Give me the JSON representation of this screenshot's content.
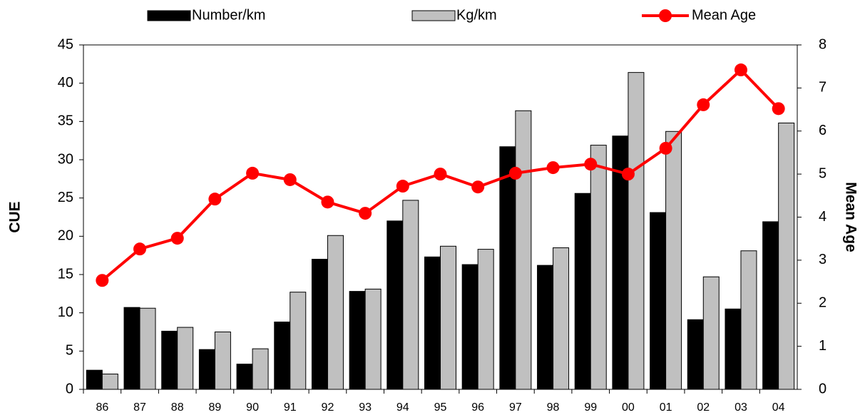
{
  "chart_data": {
    "type": "bar_line",
    "categories": [
      "86",
      "87",
      "88",
      "89",
      "90",
      "91",
      "92",
      "93",
      "94",
      "95",
      "96",
      "97",
      "98",
      "99",
      "00",
      "01",
      "02",
      "03",
      "04"
    ],
    "series": [
      {
        "name": "Number/km",
        "type": "bar",
        "color": "#000000",
        "values": [
          2.5,
          10.7,
          7.6,
          5.2,
          3.3,
          8.8,
          17.0,
          12.8,
          22.0,
          17.3,
          16.3,
          31.7,
          16.2,
          25.6,
          33.1,
          23.1,
          9.1,
          10.5,
          21.9
        ]
      },
      {
        "name": "Kg/km",
        "type": "bar",
        "color": "#c0c0c0",
        "values": [
          2.0,
          10.6,
          8.1,
          7.5,
          5.3,
          12.7,
          20.1,
          13.1,
          24.7,
          18.7,
          18.3,
          36.4,
          18.5,
          31.9,
          41.4,
          33.7,
          14.7,
          18.1,
          34.8
        ]
      },
      {
        "name": "Mean Age",
        "type": "line",
        "axis": "y2",
        "color": "#ff0000",
        "values": [
          2.53,
          3.26,
          3.51,
          4.42,
          5.02,
          4.87,
          4.35,
          4.09,
          4.72,
          5.0,
          4.7,
          5.02,
          5.15,
          5.23,
          5.0,
          5.6,
          6.61,
          7.42,
          6.52
        ]
      }
    ],
    "ylabel": "CUE",
    "y2label": "Mean Age",
    "ylim": [
      0,
      45
    ],
    "yticks": [
      0,
      5,
      10,
      15,
      20,
      25,
      30,
      35,
      40,
      45
    ],
    "y2lim": [
      0,
      8
    ],
    "y2ticks": [
      0,
      1,
      2,
      3,
      4,
      5,
      6,
      7,
      8
    ]
  }
}
